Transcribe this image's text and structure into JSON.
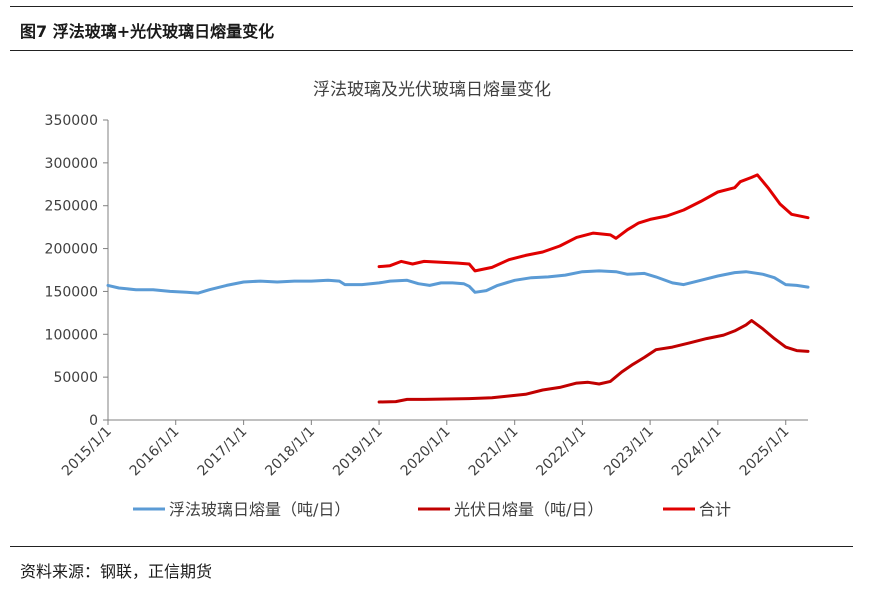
{
  "figure": {
    "title": "图7  浮法玻璃+光伏玻璃日熔量变化",
    "source": "资料来源：钢联，正信期货"
  },
  "colors": {
    "float": "#5B9BD5",
    "pv": "#C00000",
    "total": "#E00000",
    "axis": "#808080",
    "text": "#404040"
  },
  "chart_data": {
    "type": "line",
    "title": "浮法玻璃及光伏玻璃日熔量变化",
    "xlabel": "",
    "ylabel": "",
    "ylim": [
      0,
      350000
    ],
    "yticks": [
      "0",
      "50000",
      "100000",
      "150000",
      "200000",
      "250000",
      "300000",
      "350000"
    ],
    "xticks": [
      "2015/1/1",
      "2016/1/1",
      "2017/1/1",
      "2018/1/1",
      "2019/1/1",
      "2020/1/1",
      "2021/1/1",
      "2022/1/1",
      "2023/1/1",
      "2024/1/1",
      "2025/1/1"
    ],
    "x_range": [
      "2015-01-01",
      "2025-05-01"
    ],
    "grid": false,
    "legend_position": "bottom",
    "series": [
      {
        "name": "浮法玻璃日熔量（吨/日）",
        "color": "#5B9BD5",
        "points": [
          [
            "2015-01-01",
            157000
          ],
          [
            "2015-03-01",
            154000
          ],
          [
            "2015-06-01",
            152000
          ],
          [
            "2015-09-01",
            152000
          ],
          [
            "2015-12-01",
            150000
          ],
          [
            "2016-03-01",
            149000
          ],
          [
            "2016-05-01",
            148000
          ],
          [
            "2016-07-01",
            152000
          ],
          [
            "2016-10-01",
            157000
          ],
          [
            "2017-01-01",
            161000
          ],
          [
            "2017-04-01",
            162000
          ],
          [
            "2017-07-01",
            161000
          ],
          [
            "2017-10-01",
            162000
          ],
          [
            "2018-01-01",
            162000
          ],
          [
            "2018-04-01",
            163000
          ],
          [
            "2018-06-01",
            162000
          ],
          [
            "2018-07-01",
            158000
          ],
          [
            "2018-10-01",
            158000
          ],
          [
            "2019-01-01",
            160000
          ],
          [
            "2019-03-01",
            162000
          ],
          [
            "2019-06-01",
            163000
          ],
          [
            "2019-08-01",
            159000
          ],
          [
            "2019-10-01",
            157000
          ],
          [
            "2019-12-01",
            160000
          ],
          [
            "2020-02-01",
            160000
          ],
          [
            "2020-04-01",
            159000
          ],
          [
            "2020-05-01",
            156000
          ],
          [
            "2020-06-01",
            149000
          ],
          [
            "2020-08-01",
            151000
          ],
          [
            "2020-10-01",
            157000
          ],
          [
            "2021-01-01",
            163000
          ],
          [
            "2021-04-01",
            166000
          ],
          [
            "2021-07-01",
            167000
          ],
          [
            "2021-10-01",
            169000
          ],
          [
            "2022-01-01",
            173000
          ],
          [
            "2022-04-01",
            174000
          ],
          [
            "2022-07-01",
            173000
          ],
          [
            "2022-09-01",
            170000
          ],
          [
            "2022-12-01",
            171000
          ],
          [
            "2023-02-01",
            167000
          ],
          [
            "2023-05-01",
            160000
          ],
          [
            "2023-07-01",
            158000
          ],
          [
            "2023-10-01",
            163000
          ],
          [
            "2024-01-01",
            168000
          ],
          [
            "2024-04-01",
            172000
          ],
          [
            "2024-06-01",
            173000
          ],
          [
            "2024-09-01",
            170000
          ],
          [
            "2024-11-01",
            166000
          ],
          [
            "2025-01-01",
            158000
          ],
          [
            "2025-03-01",
            157000
          ],
          [
            "2025-05-01",
            155000
          ]
        ]
      },
      {
        "name": "光伏日熔量（吨/日）",
        "color": "#C00000",
        "points": [
          [
            "2019-01-01",
            21000
          ],
          [
            "2019-04-01",
            21500
          ],
          [
            "2019-06-01",
            24000
          ],
          [
            "2019-09-01",
            24000
          ],
          [
            "2020-01-01",
            24500
          ],
          [
            "2020-05-01",
            25000
          ],
          [
            "2020-09-01",
            26000
          ],
          [
            "2020-12-01",
            28000
          ],
          [
            "2021-03-01",
            30000
          ],
          [
            "2021-06-01",
            35000
          ],
          [
            "2021-09-01",
            38000
          ],
          [
            "2021-12-01",
            43000
          ],
          [
            "2022-02-01",
            44000
          ],
          [
            "2022-04-01",
            42000
          ],
          [
            "2022-06-01",
            45000
          ],
          [
            "2022-08-01",
            56000
          ],
          [
            "2022-10-01",
            65000
          ],
          [
            "2022-12-01",
            73000
          ],
          [
            "2023-02-01",
            82000
          ],
          [
            "2023-05-01",
            85000
          ],
          [
            "2023-08-01",
            90000
          ],
          [
            "2023-11-01",
            95000
          ],
          [
            "2024-02-01",
            99000
          ],
          [
            "2024-04-01",
            104000
          ],
          [
            "2024-06-01",
            111000
          ],
          [
            "2024-07-01",
            116000
          ],
          [
            "2024-09-01",
            106000
          ],
          [
            "2024-11-01",
            95000
          ],
          [
            "2025-01-01",
            85000
          ],
          [
            "2025-03-01",
            81000
          ],
          [
            "2025-05-01",
            80000
          ]
        ]
      },
      {
        "name": "合计",
        "color": "#E00000",
        "points": [
          [
            "2019-01-01",
            179000
          ],
          [
            "2019-03-01",
            180000
          ],
          [
            "2019-05-01",
            185000
          ],
          [
            "2019-07-01",
            182000
          ],
          [
            "2019-09-01",
            185000
          ],
          [
            "2019-12-01",
            184000
          ],
          [
            "2020-03-01",
            183000
          ],
          [
            "2020-05-01",
            182000
          ],
          [
            "2020-06-01",
            174000
          ],
          [
            "2020-09-01",
            178000
          ],
          [
            "2020-12-01",
            187000
          ],
          [
            "2021-03-01",
            192000
          ],
          [
            "2021-06-01",
            196000
          ],
          [
            "2021-09-01",
            203000
          ],
          [
            "2021-12-01",
            213000
          ],
          [
            "2022-03-01",
            218000
          ],
          [
            "2022-06-01",
            216000
          ],
          [
            "2022-07-01",
            212000
          ],
          [
            "2022-09-01",
            222000
          ],
          [
            "2022-11-01",
            230000
          ],
          [
            "2023-01-01",
            234000
          ],
          [
            "2023-04-01",
            238000
          ],
          [
            "2023-07-01",
            245000
          ],
          [
            "2023-10-01",
            255000
          ],
          [
            "2024-01-01",
            266000
          ],
          [
            "2024-04-01",
            271000
          ],
          [
            "2024-05-01",
            278000
          ],
          [
            "2024-07-01",
            283000
          ],
          [
            "2024-08-01",
            286000
          ],
          [
            "2024-10-01",
            270000
          ],
          [
            "2024-12-01",
            252000
          ],
          [
            "2025-02-01",
            240000
          ],
          [
            "2025-05-01",
            236000
          ]
        ]
      }
    ]
  }
}
